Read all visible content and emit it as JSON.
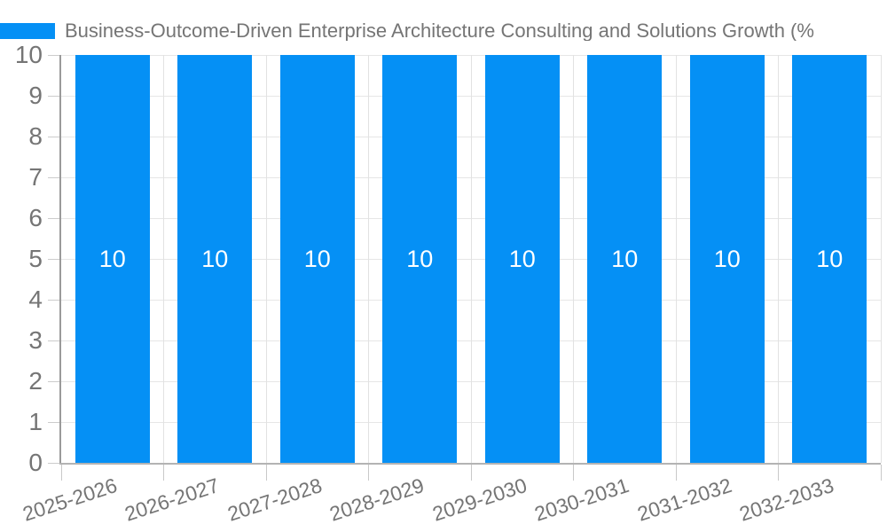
{
  "legend": {
    "swatch_color": "#0590F5",
    "series_label": "Business-Outcome-Driven Enterprise Architecture Consulting and Solutions Growth (%"
  },
  "chart_data": {
    "type": "bar",
    "title": "Business-Outcome-Driven Enterprise Architecture Consulting and Solutions Growth (%",
    "categories": [
      "2025-2026",
      "2026-2027",
      "2027-2028",
      "2028-2029",
      "2029-2030",
      "2030-2031",
      "2031-2032",
      "2032-2033"
    ],
    "series": [
      {
        "name": "Business-Outcome-Driven Enterprise Architecture Consulting and Solutions Growth (%",
        "values": [
          10,
          10,
          10,
          10,
          10,
          10,
          10,
          10
        ]
      }
    ],
    "data_labels": [
      "10",
      "10",
      "10",
      "10",
      "10",
      "10",
      "10",
      "10"
    ],
    "xlabel": "",
    "ylabel": "",
    "ylim": [
      0,
      10
    ],
    "yticks": [
      0,
      1,
      2,
      3,
      4,
      5,
      6,
      7,
      8,
      9,
      10
    ],
    "grid": true,
    "legend_position": "top-left",
    "xlabel_rotation_deg": -18,
    "colors": {
      "bar": "#0590F5",
      "data_label": "#ffffff",
      "axis_text": "#757575",
      "gridline": "#e6e6e6",
      "axis_line": "#9a9a9a"
    }
  }
}
